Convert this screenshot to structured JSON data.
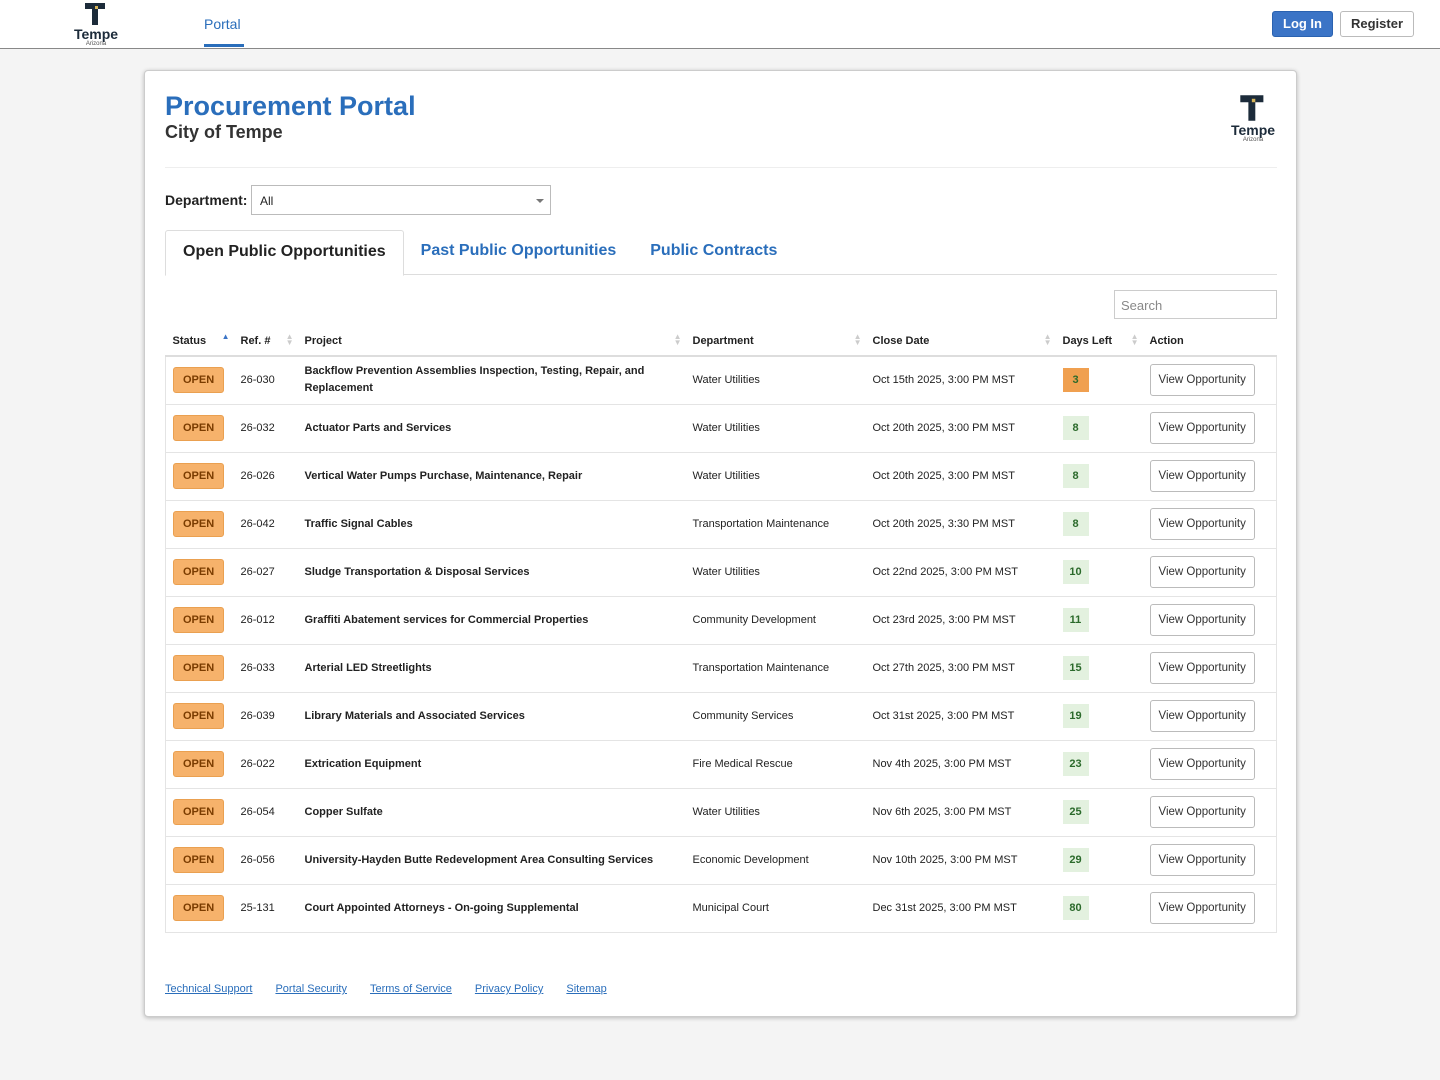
{
  "nav": {
    "logo_text": "Tempe",
    "logo_sub": "Arizona",
    "link": "Portal",
    "login": "Log In",
    "register": "Register"
  },
  "header": {
    "title": "Procurement Portal",
    "subtitle": "City of Tempe",
    "logo_text": "Tempe",
    "logo_sub": "Arizona"
  },
  "filter": {
    "label": "Department:",
    "value": "All"
  },
  "tabs": [
    "Open Public Opportunities",
    "Past Public Opportunities",
    "Public Contracts"
  ],
  "search_placeholder": "Search",
  "table": {
    "columns": [
      "Status",
      "Ref. #",
      "Project",
      "Department",
      "Close Date",
      "Days Left",
      "Action"
    ],
    "rows": [
      {
        "status": "OPEN",
        "ref": "26-030",
        "project": "Backflow Prevention Assemblies Inspection, Testing, Repair, and Replacement",
        "department": "Water Utilities",
        "close_date": "Oct 15th 2025, 3:00 PM MST",
        "days_left": 3,
        "days_color": "#f0a050",
        "action": "View Opportunity"
      },
      {
        "status": "OPEN",
        "ref": "26-032",
        "project": "Actuator Parts and Services",
        "department": "Water Utilities",
        "close_date": "Oct 20th 2025, 3:00 PM MST",
        "days_left": 8,
        "days_color": "#e3f1df",
        "action": "View Opportunity"
      },
      {
        "status": "OPEN",
        "ref": "26-026",
        "project": "Vertical Water Pumps Purchase, Maintenance, Repair",
        "department": "Water Utilities",
        "close_date": "Oct 20th 2025, 3:00 PM MST",
        "days_left": 8,
        "days_color": "#e3f1df",
        "action": "View Opportunity"
      },
      {
        "status": "OPEN",
        "ref": "26-042",
        "project": "Traffic Signal Cables",
        "department": "Transportation Maintenance",
        "close_date": "Oct 20th 2025, 3:30 PM MST",
        "days_left": 8,
        "days_color": "#e3f1df",
        "action": "View Opportunity"
      },
      {
        "status": "OPEN",
        "ref": "26-027",
        "project": "Sludge Transportation & Disposal Services",
        "department": "Water Utilities",
        "close_date": "Oct 22nd 2025, 3:00 PM MST",
        "days_left": 10,
        "days_color": "#e3f1df",
        "action": "View Opportunity"
      },
      {
        "status": "OPEN",
        "ref": "26-012",
        "project": "Graffiti Abatement services for Commercial Properties",
        "department": "Community Development",
        "close_date": "Oct 23rd 2025, 3:00 PM MST",
        "days_left": 11,
        "days_color": "#e3f1df",
        "action": "View Opportunity"
      },
      {
        "status": "OPEN",
        "ref": "26-033",
        "project": "Arterial LED Streetlights",
        "department": "Transportation Maintenance",
        "close_date": "Oct 27th 2025, 3:00 PM MST",
        "days_left": 15,
        "days_color": "#e3f1df",
        "action": "View Opportunity"
      },
      {
        "status": "OPEN",
        "ref": "26-039",
        "project": "Library Materials and Associated Services",
        "department": "Community Services",
        "close_date": "Oct 31st 2025, 3:00 PM MST",
        "days_left": 19,
        "days_color": "#e3f1df",
        "action": "View Opportunity"
      },
      {
        "status": "OPEN",
        "ref": "26-022",
        "project": "Extrication Equipment",
        "department": "Fire Medical Rescue",
        "close_date": "Nov 4th 2025, 3:00 PM MST",
        "days_left": 23,
        "days_color": "#e3f1df",
        "action": "View Opportunity"
      },
      {
        "status": "OPEN",
        "ref": "26-054",
        "project": "Copper Sulfate",
        "department": "Water Utilities",
        "close_date": "Nov 6th 2025, 3:00 PM MST",
        "days_left": 25,
        "days_color": "#e3f1df",
        "action": "View Opportunity"
      },
      {
        "status": "OPEN",
        "ref": "26-056",
        "project": "University-Hayden Butte Redevelopment Area Consulting Services",
        "department": "Economic Development",
        "close_date": "Nov 10th 2025, 3:00 PM MST",
        "days_left": 29,
        "days_color": "#e3f1df",
        "action": "View Opportunity"
      },
      {
        "status": "OPEN",
        "ref": "25-131",
        "project": "Court Appointed Attorneys - On-going Supplemental",
        "department": "Municipal Court",
        "close_date": "Dec 31st 2025, 3:00 PM MST",
        "days_left": 80,
        "days_color": "#e3f1df",
        "action": "View Opportunity"
      }
    ]
  },
  "footer_links": [
    "Technical Support",
    "Portal Security",
    "Terms of Service",
    "Privacy Policy",
    "Sitemap"
  ]
}
